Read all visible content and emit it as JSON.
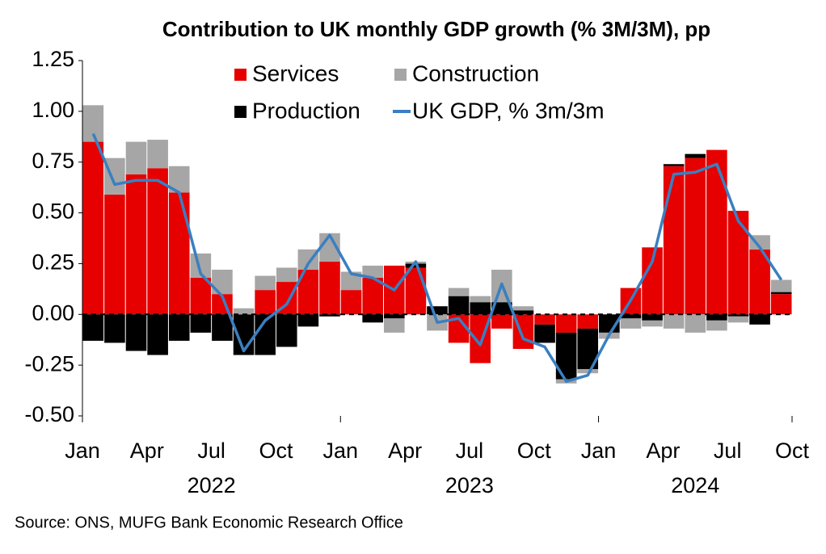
{
  "chart_data": {
    "type": "bar",
    "stacked": true,
    "title": "Contribution to UK monthly GDP growth (% 3M/3M), pp",
    "source": "Source: ONS, MUFG Bank Economic Research Office",
    "x": [
      0,
      1,
      2,
      3,
      4,
      5,
      6,
      7,
      8,
      9,
      10,
      11,
      12,
      13,
      14,
      15,
      16,
      17,
      18,
      19,
      20,
      21,
      22,
      23,
      24,
      25,
      26,
      27,
      28,
      29,
      30,
      31,
      32
    ],
    "xlim": [
      0,
      33
    ],
    "xticks": [
      {
        "value": 0,
        "label": "Jan"
      },
      {
        "value": 3,
        "label": "Apr"
      },
      {
        "value": 6,
        "label": "Jul"
      },
      {
        "value": 9,
        "label": "Oct"
      },
      {
        "value": 12,
        "label": "Jan"
      },
      {
        "value": 15,
        "label": "Apr"
      },
      {
        "value": 18,
        "label": "Jul"
      },
      {
        "value": 21,
        "label": "Oct"
      },
      {
        "value": 24,
        "label": "Jan"
      },
      {
        "value": 27,
        "label": "Apr"
      },
      {
        "value": 30,
        "label": "Jul"
      },
      {
        "value": 33,
        "label": "Oct"
      }
    ],
    "year_labels": [
      {
        "value": 6,
        "label": "2022"
      },
      {
        "value": 18,
        "label": "2023"
      },
      {
        "value": 28.5,
        "label": "2024"
      }
    ],
    "ylim": [
      -0.5,
      1.25
    ],
    "yticks": [
      {
        "value": -0.5,
        "label": "-0.50"
      },
      -0.25,
      {
        "value": 0,
        "label": "0.00"
      },
      0.25,
      {
        "value": 0.5,
        "label": "0.50"
      },
      0.75,
      {
        "value": 1,
        "label": "1.00"
      },
      1.25
    ],
    "series": [
      {
        "name": "Services",
        "type": "bar",
        "color": "#e60000",
        "values": [
          0.85,
          0.59,
          0.69,
          0.72,
          0.6,
          0.18,
          0.1,
          0,
          0.12,
          0.16,
          0.22,
          0.26,
          0.12,
          0.18,
          0.24,
          0.23,
          0,
          -0.14,
          -0.24,
          -0.07,
          -0.17,
          -0.05,
          -0.09,
          -0.07,
          0,
          0.13,
          0.33,
          0.73,
          0.77,
          0.81,
          0.51,
          0.32,
          0.1
        ]
      },
      {
        "name": "Construction",
        "type": "bar",
        "color": "#a6a6a6",
        "values": [
          0.18,
          0.18,
          0.16,
          0.14,
          0.13,
          0.12,
          0.12,
          0.03,
          0.07,
          0.07,
          0.1,
          0.14,
          0.09,
          0.06,
          -0.07,
          0.01,
          -0.08,
          0.04,
          0.03,
          0.16,
          0.02,
          0,
          -0.02,
          -0.02,
          -0.03,
          -0.05,
          -0.03,
          -0.07,
          -0.09,
          -0.05,
          -0.03,
          0.07,
          0.06
        ]
      },
      {
        "name": "Production",
        "type": "bar",
        "color": "#000000",
        "values": [
          -0.13,
          -0.14,
          -0.18,
          -0.2,
          -0.13,
          -0.09,
          -0.13,
          -0.2,
          -0.2,
          -0.16,
          -0.06,
          -0.01,
          0,
          -0.04,
          -0.02,
          0.02,
          0.04,
          0.09,
          0.06,
          0.06,
          0.02,
          -0.09,
          -0.23,
          -0.2,
          -0.09,
          -0.02,
          -0.03,
          0.01,
          0.02,
          -0.03,
          -0.01,
          -0.05,
          0.01
        ]
      },
      {
        "name": "UK GDP, % 3m/3m",
        "type": "line",
        "color": "#3a7fc1",
        "values": [
          0.89,
          0.64,
          0.66,
          0.66,
          0.6,
          0.2,
          0.09,
          -0.18,
          -0.03,
          0.05,
          0.25,
          0.39,
          0.2,
          0.18,
          0.12,
          0.26,
          -0.04,
          -0.02,
          -0.15,
          0.15,
          -0.12,
          -0.16,
          -0.33,
          -0.3,
          -0.1,
          0.07,
          0.26,
          0.69,
          0.7,
          0.74,
          0.46,
          0.33,
          0.17
        ]
      }
    ]
  }
}
